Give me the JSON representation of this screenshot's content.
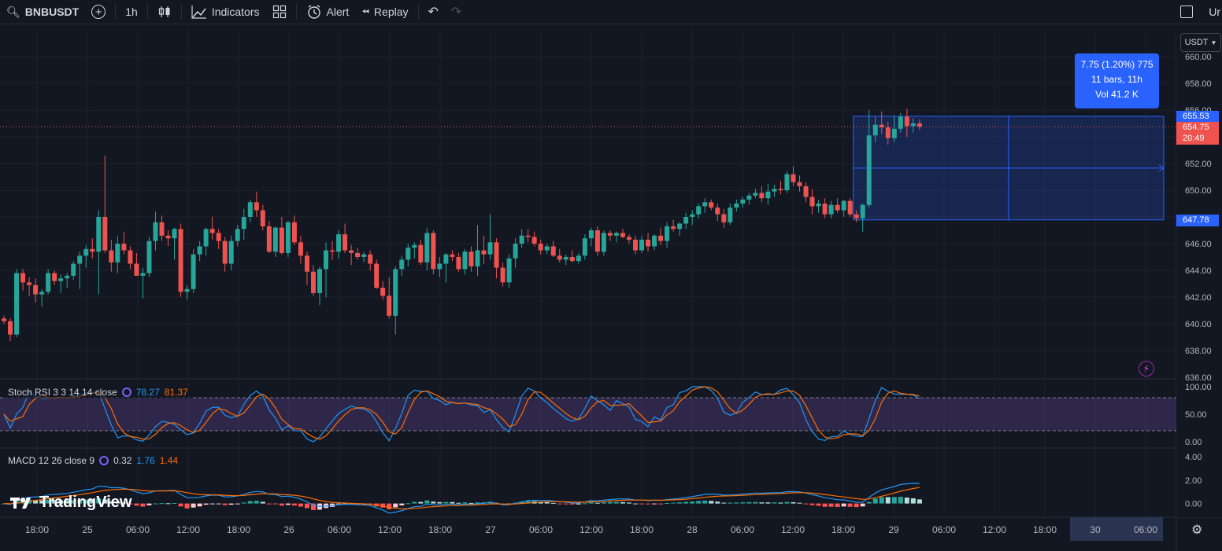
{
  "toolbar": {
    "symbol": "BNBUSDT",
    "interval": "1h",
    "indicators_label": "Indicators",
    "alert_label": "Alert",
    "replay_label": "Replay",
    "cutoff_label": "Ur"
  },
  "currency_selector": "USDT",
  "price_axis": {
    "ticks": [
      "660.00",
      "658.00",
      "656.00",
      "652.00",
      "650.00",
      "646.00",
      "644.00",
      "642.00",
      "640.00",
      "638.00",
      "636.00"
    ],
    "tick_values": [
      660,
      658,
      656,
      652,
      650,
      646,
      644,
      642,
      640,
      638,
      636
    ],
    "labels": {
      "high": "655.53",
      "last": "654.75",
      "countdown": "20:49",
      "low": "647.78"
    }
  },
  "time_axis": [
    "18:00",
    "25",
    "06:00",
    "12:00",
    "18:00",
    "26",
    "06:00",
    "12:00",
    "18:00",
    "27",
    "06:00",
    "12:00",
    "18:00",
    "28",
    "06:00",
    "12:00",
    "18:00",
    "29",
    "06:00",
    "12:00",
    "18:00",
    "30",
    "06:00"
  ],
  "measure_tooltip": {
    "line1": "7.75 (1.20%) 775",
    "line2": "11 bars, 11h",
    "line3": "Vol 41.2 K"
  },
  "stoch_rsi": {
    "title": "Stoch RSI 3 3 14 14 close",
    "k_value": "78.27",
    "d_value": "81.37",
    "axis": [
      "100.00",
      "50.00",
      "0.00"
    ],
    "k_color": "#2196f3",
    "d_color": "#ff6d00"
  },
  "macd": {
    "title": "MACD 12 26 close 9",
    "hist_value": "0.32",
    "macd_value": "1.76",
    "signal_value": "1.44",
    "axis": [
      "4.00",
      "2.00",
      "0.00"
    ],
    "macd_color": "#2196f3",
    "signal_color": "#ff6d00"
  },
  "logo_text": "TradingView",
  "colors": {
    "up": "#26a69a",
    "down": "#ef5350",
    "background": "#131722",
    "accent": "#2962ff"
  },
  "chart_data": {
    "type": "candlestick",
    "symbol": "BNBUSDT",
    "interval": "1h",
    "ylim": [
      636,
      661
    ],
    "candles": [
      [
        640.4,
        640.6,
        640.0,
        640.2
      ],
      [
        640.2,
        640.4,
        638.7,
        639.2
      ],
      [
        639.2,
        644.1,
        639.0,
        643.8
      ],
      [
        643.8,
        644.1,
        642.5,
        643.1
      ],
      [
        643.1,
        643.5,
        642.1,
        642.9
      ],
      [
        642.9,
        643.4,
        641.6,
        642.2
      ],
      [
        642.2,
        642.6,
        641.3,
        642.4
      ],
      [
        642.4,
        644.1,
        642.2,
        643.8
      ],
      [
        643.8,
        644.0,
        642.9,
        643.2
      ],
      [
        643.2,
        643.7,
        642.3,
        643.4
      ],
      [
        643.4,
        643.8,
        642.7,
        643.6
      ],
      [
        643.6,
        644.7,
        643.3,
        644.5
      ],
      [
        644.5,
        645.4,
        642.6,
        645.1
      ],
      [
        645.1,
        645.9,
        644.2,
        645.6
      ],
      [
        645.6,
        646.4,
        644.9,
        645.4
      ],
      [
        645.4,
        648.5,
        642.2,
        648.0
      ],
      [
        648.0,
        652.6,
        645.3,
        645.5
      ],
      [
        645.5,
        646.3,
        643.9,
        644.6
      ],
      [
        644.6,
        646.6,
        643.8,
        646.0
      ],
      [
        646.0,
        646.9,
        645.2,
        645.5
      ],
      [
        645.5,
        645.8,
        644.1,
        644.5
      ],
      [
        644.5,
        645.3,
        643.6,
        643.6
      ],
      [
        643.6,
        644.2,
        641.9,
        643.8
      ],
      [
        643.8,
        646.5,
        643.5,
        646.2
      ],
      [
        646.2,
        648.4,
        645.5,
        647.6
      ],
      [
        647.6,
        648.1,
        646.2,
        646.6
      ],
      [
        646.6,
        647.0,
        645.8,
        646.4
      ],
      [
        646.4,
        647.2,
        644.8,
        647.1
      ],
      [
        647.1,
        647.5,
        642.0,
        642.4
      ],
      [
        642.4,
        642.9,
        641.8,
        642.6
      ],
      [
        642.6,
        645.6,
        642.3,
        645.2
      ],
      [
        645.2,
        646.2,
        644.7,
        645.8
      ],
      [
        645.8,
        647.2,
        645.1,
        647.1
      ],
      [
        647.1,
        648.0,
        646.3,
        646.8
      ],
      [
        646.8,
        647.1,
        645.6,
        646.2
      ],
      [
        646.2,
        646.5,
        643.9,
        644.5
      ],
      [
        644.5,
        646.6,
        644.0,
        646.2
      ],
      [
        646.2,
        647.4,
        645.8,
        647.1
      ],
      [
        647.1,
        648.6,
        646.3,
        648.0
      ],
      [
        648.0,
        649.3,
        647.6,
        649.1
      ],
      [
        649.1,
        649.9,
        648.0,
        648.5
      ],
      [
        648.5,
        648.9,
        647.0,
        647.3
      ],
      [
        647.3,
        647.7,
        645.3,
        645.4
      ],
      [
        645.4,
        647.3,
        645.0,
        647.2
      ],
      [
        647.2,
        648.0,
        645.2,
        645.3
      ],
      [
        645.3,
        647.7,
        645.0,
        647.6
      ],
      [
        647.6,
        648.1,
        645.9,
        646.1
      ],
      [
        646.1,
        646.6,
        644.5,
        645.1
      ],
      [
        645.1,
        645.4,
        642.9,
        643.9
      ],
      [
        643.9,
        644.4,
        642.1,
        642.3
      ],
      [
        642.3,
        644.3,
        641.4,
        644.1
      ],
      [
        644.1,
        646.1,
        642.0,
        645.5
      ],
      [
        645.5,
        646.2,
        644.8,
        645.4
      ],
      [
        645.4,
        647.0,
        644.9,
        646.7
      ],
      [
        646.7,
        647.5,
        645.3,
        645.5
      ],
      [
        645.5,
        645.9,
        644.4,
        645.3
      ],
      [
        645.3,
        645.7,
        644.8,
        645.0
      ],
      [
        645.0,
        645.4,
        644.6,
        645.2
      ],
      [
        645.2,
        645.5,
        644.0,
        644.5
      ],
      [
        644.5,
        644.8,
        642.6,
        642.7
      ],
      [
        642.7,
        643.2,
        641.8,
        642.1
      ],
      [
        642.1,
        643.5,
        640.4,
        640.6
      ],
      [
        640.6,
        644.3,
        639.2,
        644.1
      ],
      [
        644.1,
        645.1,
        643.6,
        644.8
      ],
      [
        644.8,
        646.0,
        644.3,
        645.7
      ],
      [
        645.7,
        646.1,
        644.9,
        645.9
      ],
      [
        645.9,
        646.3,
        644.4,
        644.6
      ],
      [
        644.6,
        647.2,
        644.0,
        646.8
      ],
      [
        646.8,
        647.0,
        643.7,
        644.1
      ],
      [
        644.1,
        645.0,
        643.5,
        644.5
      ],
      [
        644.5,
        645.3,
        643.1,
        645.2
      ],
      [
        645.2,
        645.5,
        644.7,
        645.0
      ],
      [
        645.0,
        645.3,
        643.9,
        644.1
      ],
      [
        644.1,
        645.6,
        643.7,
        645.4
      ],
      [
        645.4,
        645.8,
        643.9,
        644.3
      ],
      [
        644.3,
        647.4,
        643.6,
        645.5
      ],
      [
        645.5,
        646.6,
        644.5,
        645.2
      ],
      [
        645.2,
        648.2,
        644.8,
        646.1
      ],
      [
        646.1,
        646.4,
        643.4,
        644.2
      ],
      [
        644.2,
        644.6,
        642.8,
        643.1
      ],
      [
        643.1,
        645.2,
        642.7,
        644.9
      ],
      [
        644.9,
        646.4,
        644.2,
        646.0
      ],
      [
        646.0,
        647.1,
        645.7,
        646.6
      ],
      [
        646.6,
        647.1,
        646.1,
        646.5
      ],
      [
        646.5,
        646.9,
        645.8,
        646.0
      ],
      [
        646.0,
        646.3,
        645.2,
        645.5
      ],
      [
        645.5,
        646.0,
        645.2,
        645.8
      ],
      [
        645.8,
        646.2,
        645.0,
        645.1
      ],
      [
        645.1,
        645.6,
        644.6,
        644.8
      ],
      [
        644.8,
        645.2,
        644.4,
        645.0
      ],
      [
        645.0,
        645.5,
        644.6,
        644.7
      ],
      [
        644.7,
        645.3,
        644.5,
        645.1
      ],
      [
        645.1,
        646.7,
        644.8,
        646.4
      ],
      [
        646.4,
        647.2,
        645.8,
        647.0
      ],
      [
        647.0,
        647.3,
        645.1,
        645.4
      ],
      [
        645.4,
        647.0,
        645.1,
        646.8
      ],
      [
        646.8,
        647.0,
        646.2,
        646.6
      ],
      [
        646.6,
        646.9,
        646.1,
        646.8
      ],
      [
        646.8,
        647.1,
        646.4,
        646.5
      ],
      [
        646.5,
        646.7,
        646.0,
        646.3
      ],
      [
        646.3,
        646.6,
        645.2,
        645.5
      ],
      [
        645.5,
        646.6,
        645.3,
        646.3
      ],
      [
        646.3,
        646.8,
        645.4,
        645.8
      ],
      [
        645.8,
        646.7,
        645.5,
        646.6
      ],
      [
        646.6,
        647.2,
        645.9,
        646.2
      ],
      [
        646.2,
        647.6,
        645.7,
        647.3
      ],
      [
        647.3,
        647.8,
        646.9,
        647.1
      ],
      [
        647.1,
        647.6,
        646.6,
        647.5
      ],
      [
        647.5,
        648.3,
        647.1,
        648.0
      ],
      [
        648.0,
        648.5,
        647.4,
        648.2
      ],
      [
        648.2,
        649.0,
        647.9,
        648.8
      ],
      [
        648.8,
        649.4,
        648.3,
        649.1
      ],
      [
        649.1,
        649.3,
        648.5,
        648.7
      ],
      [
        648.7,
        649.0,
        647.7,
        648.2
      ],
      [
        648.2,
        648.6,
        647.2,
        647.6
      ],
      [
        647.6,
        649.0,
        647.4,
        648.7
      ],
      [
        648.7,
        649.3,
        648.4,
        649.0
      ],
      [
        649.0,
        649.5,
        648.7,
        649.3
      ],
      [
        649.3,
        649.8,
        648.9,
        649.6
      ],
      [
        649.6,
        650.1,
        649.4,
        649.8
      ],
      [
        649.8,
        650.3,
        649.1,
        649.4
      ],
      [
        649.4,
        650.5,
        648.9,
        649.9
      ],
      [
        649.9,
        650.4,
        649.5,
        650.1
      ],
      [
        650.1,
        650.7,
        649.7,
        650.0
      ],
      [
        650.0,
        651.4,
        649.8,
        651.2
      ],
      [
        651.2,
        651.8,
        650.3,
        650.6
      ],
      [
        650.6,
        651.1,
        649.9,
        650.3
      ],
      [
        650.3,
        650.6,
        649.1,
        649.5
      ],
      [
        649.5,
        650.1,
        648.2,
        648.8
      ],
      [
        648.8,
        649.3,
        648.3,
        649.0
      ],
      [
        649.0,
        649.4,
        647.9,
        648.2
      ],
      [
        648.2,
        649.2,
        647.9,
        648.9
      ],
      [
        648.9,
        649.4,
        648.3,
        648.5
      ],
      [
        648.5,
        649.3,
        648.0,
        649.2
      ],
      [
        649.2,
        649.4,
        648.0,
        648.2
      ],
      [
        648.2,
        648.5,
        647.6,
        647.9
      ],
      [
        647.9,
        649.0,
        646.9,
        648.9
      ],
      [
        648.9,
        656.0,
        648.7,
        654.1
      ],
      [
        654.1,
        655.5,
        653.6,
        654.9
      ],
      [
        654.9,
        655.9,
        654.2,
        654.7
      ],
      [
        654.7,
        655.1,
        653.4,
        653.9
      ],
      [
        653.9,
        655.6,
        653.6,
        654.6
      ],
      [
        654.6,
        655.8,
        654.3,
        655.5
      ],
      [
        655.5,
        656.1,
        654.0,
        654.8
      ],
      [
        654.8,
        655.4,
        654.3,
        655.0
      ],
      [
        655.0,
        655.3,
        654.5,
        654.75
      ]
    ]
  }
}
